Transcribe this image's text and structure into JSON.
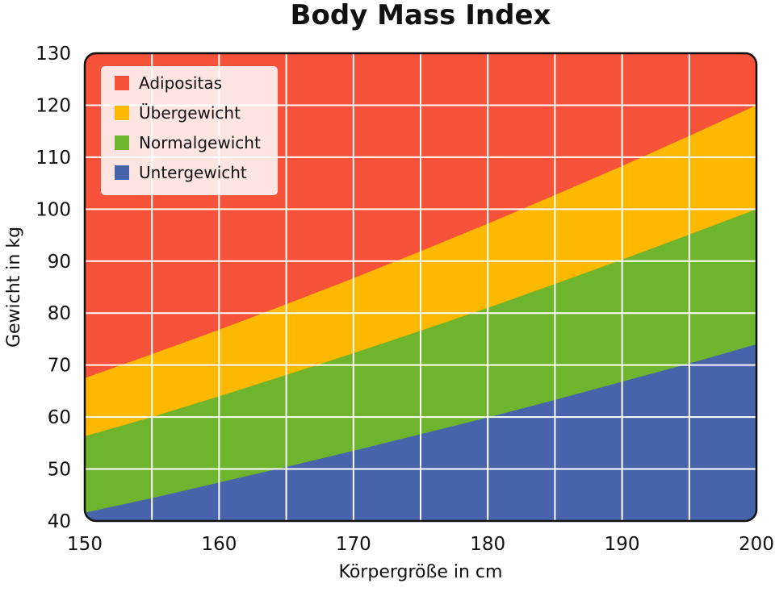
{
  "chart_data": {
    "type": "area",
    "title": "Body Mass Index",
    "xlabel": "Körpergröße in cm",
    "ylabel": "Gewicht in kg",
    "xlim": [
      150,
      200
    ],
    "ylim": [
      40,
      130
    ],
    "x_ticks": [
      "150",
      "160",
      "170",
      "180",
      "190",
      "200"
    ],
    "y_ticks": [
      "40",
      "50",
      "60",
      "70",
      "80",
      "90",
      "100",
      "110",
      "120",
      "130"
    ],
    "x_grid_step": 5,
    "y_grid_step": 10,
    "grid": true,
    "legend_position": "top-left",
    "boundaries": {
      "x": [
        150,
        155,
        160,
        165,
        170,
        175,
        180,
        185,
        190,
        195,
        200
      ],
      "underweight_upper": [
        41.6,
        44.4,
        47.4,
        50.4,
        53.5,
        56.7,
        59.9,
        63.3,
        66.8,
        70.3,
        74.0
      ],
      "normal_upper": [
        56.3,
        60.0,
        64.0,
        68.1,
        72.3,
        76.6,
        81.0,
        85.6,
        90.3,
        95.1,
        100.0
      ],
      "overweight_upper": [
        67.5,
        72.1,
        76.8,
        81.7,
        86.7,
        91.9,
        97.2,
        102.7,
        108.3,
        114.1,
        120.0
      ]
    },
    "series": [
      {
        "name": "Adipositas",
        "color": "#F65139"
      },
      {
        "name": "Übergewicht",
        "color": "#FCB900"
      },
      {
        "name": "Normalgewicht",
        "color": "#6FB42D"
      },
      {
        "name": "Untergewicht",
        "color": "#4663AC"
      }
    ]
  }
}
